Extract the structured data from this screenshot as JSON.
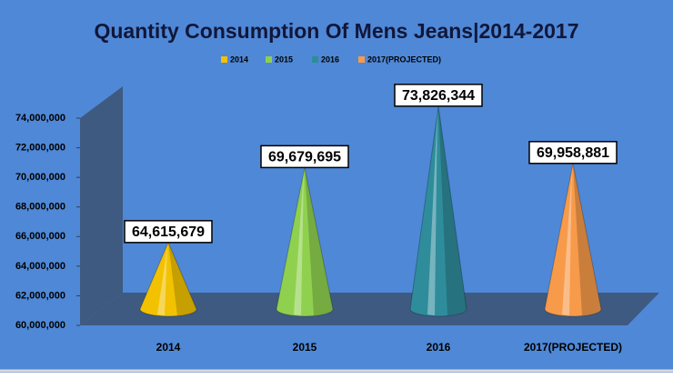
{
  "chart_data": {
    "type": "cone",
    "title": "Quantity Consumption Of Mens Jeans|2014-2017",
    "categories": [
      "2014",
      "2015",
      "2016",
      "2017(PROJECTED)"
    ],
    "values": [
      64615679,
      69679695,
      73826344,
      69958881
    ],
    "value_labels": [
      "64,615,679",
      "69,679,695",
      "73,826,344",
      "69,958,881"
    ],
    "colors": [
      "#f2c200",
      "#8fd14f",
      "#2f8c9b",
      "#f79a4a"
    ],
    "ylim": [
      60000000,
      74000000
    ],
    "yticks": [
      {
        "value": 60000000,
        "label": "60,000,000"
      },
      {
        "value": 62000000,
        "label": "62,000,000"
      },
      {
        "value": 64000000,
        "label": "64,000,000"
      },
      {
        "value": 66000000,
        "label": "66,000,000"
      },
      {
        "value": 68000000,
        "label": "68,000,000"
      },
      {
        "value": 70000000,
        "label": "70,000,000"
      },
      {
        "value": 72000000,
        "label": "72,000,000"
      },
      {
        "value": 74000000,
        "label": "74,000,000"
      }
    ],
    "legend": "top",
    "grid": false
  }
}
